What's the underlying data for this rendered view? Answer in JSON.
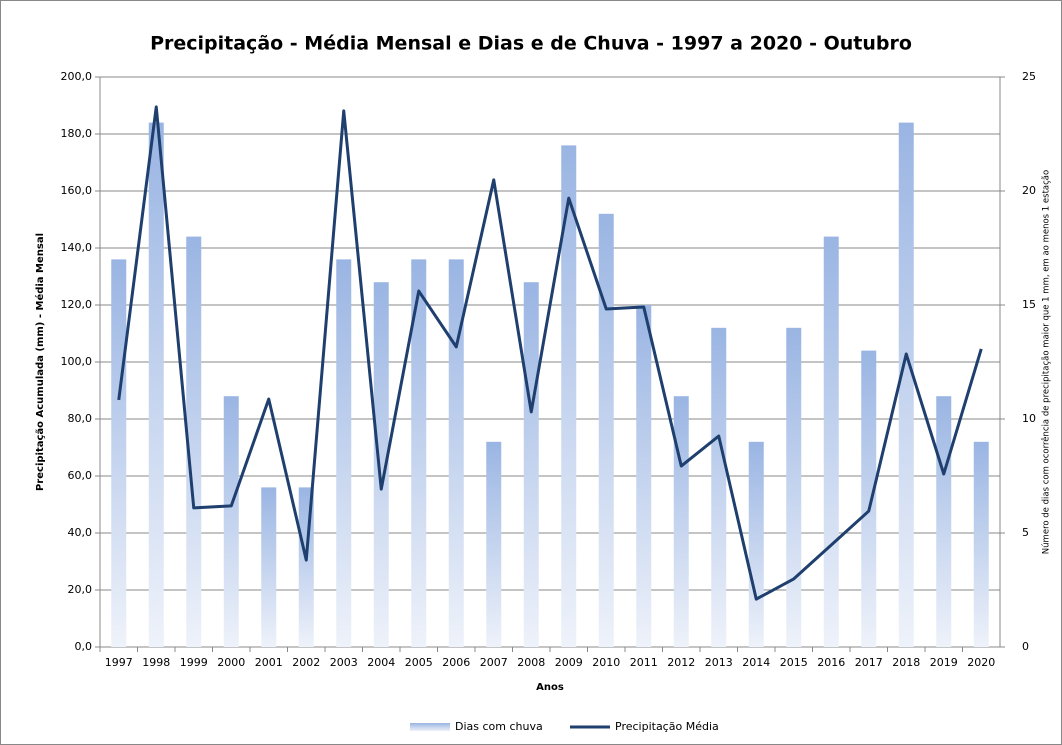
{
  "chart_data": {
    "type": "bar-line",
    "title": "Precipitação - Média Mensal e Dias e de Chuva - 1997 a 2020 - Outubro",
    "x_label": "Anos",
    "y_label": "Precipitação Acumulada (mm) - Média Mensal",
    "y2_label": "Número de dias com ocorrência de precipitação maior que 1 mm, em ao menos 1 estação",
    "categories": [
      "1997",
      "1998",
      "1999",
      "2000",
      "2001",
      "2002",
      "2003",
      "2004",
      "2005",
      "2006",
      "2007",
      "2008",
      "2009",
      "2010",
      "2011",
      "2012",
      "2013",
      "2014",
      "2015",
      "2016",
      "2017",
      "2018",
      "2019",
      "2020"
    ],
    "series": [
      {
        "name": "Dias com chuva",
        "color": "#9ab5e3",
        "axis": "y2",
        "kind": "bar",
        "values": [
          17,
          23,
          18,
          11,
          7,
          7,
          17,
          16,
          17,
          17,
          9,
          16,
          22,
          19,
          15,
          11,
          14,
          9,
          14,
          18,
          13,
          23,
          11,
          9
        ]
      },
      {
        "name": "Precipitação Média",
        "color": "#1f3f6e",
        "axis": "y",
        "kind": "line",
        "values": [
          86.7,
          189.5,
          48.8,
          49.5,
          87.0,
          30.5,
          188.1,
          55.4,
          124.9,
          105.3,
          163.9,
          82.5,
          157.5,
          118.6,
          119.3,
          63.5,
          74.0,
          16.8,
          23.9,
          35.8,
          47.7,
          102.8,
          60.7,
          104.6
        ]
      }
    ],
    "ylim": [
      0,
      200
    ],
    "yticks": [
      {
        "value": 0,
        "label": "0,0"
      },
      {
        "value": 20,
        "label": "20,0"
      },
      {
        "value": 40,
        "label": "40,0"
      },
      {
        "value": 60,
        "label": "60,0"
      },
      {
        "value": 80,
        "label": "80,0"
      },
      {
        "value": 100,
        "label": "100,0"
      },
      {
        "value": 120,
        "label": "120,0"
      },
      {
        "value": 140,
        "label": "140,0"
      },
      {
        "value": 160,
        "label": "160,0"
      },
      {
        "value": 180,
        "label": "180,0"
      },
      {
        "value": 200,
        "label": "200,0"
      }
    ],
    "y2lim": [
      0,
      25
    ],
    "y2ticks": [
      0,
      5,
      10,
      15,
      20,
      25
    ],
    "grid": true,
    "legend": "bottom"
  }
}
